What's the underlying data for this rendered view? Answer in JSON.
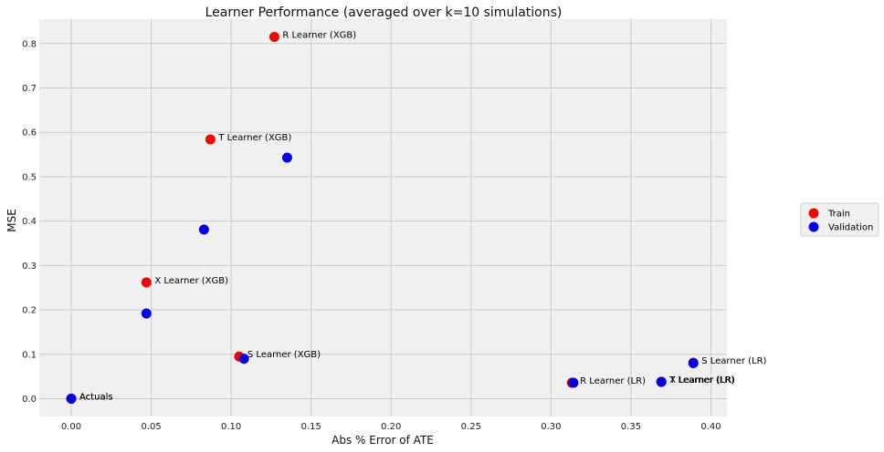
{
  "chart_data": {
    "type": "scatter",
    "title": "Learner Performance (averaged over k=10 simulations)",
    "xlabel": "Abs % Error of ATE",
    "ylabel": "MSE",
    "xlim": [
      -0.02,
      0.41
    ],
    "ylim": [
      -0.04,
      0.855
    ],
    "xticks": [
      0.0,
      0.05,
      0.1,
      0.15,
      0.2,
      0.25,
      0.3,
      0.35,
      0.4
    ],
    "xtick_labels": [
      "0.00",
      "0.05",
      "0.10",
      "0.15",
      "0.20",
      "0.25",
      "0.30",
      "0.35",
      "0.40"
    ],
    "yticks": [
      0.0,
      0.1,
      0.2,
      0.3,
      0.4,
      0.5,
      0.6,
      0.7,
      0.8
    ],
    "ytick_labels": [
      "0.0",
      "0.1",
      "0.2",
      "0.3",
      "0.4",
      "0.5",
      "0.6",
      "0.7",
      "0.8"
    ],
    "grid": true,
    "legend_position": "right",
    "series": [
      {
        "name": "Train",
        "color": "#ff0000",
        "points": [
          {
            "label": "R Learner (XGB)",
            "x": 0.127,
            "y": 0.815
          },
          {
            "label": "T Learner (XGB)",
            "x": 0.087,
            "y": 0.584
          },
          {
            "label": "X Learner (XGB)",
            "x": 0.047,
            "y": 0.262
          },
          {
            "label": "S Learner (XGB)",
            "x": 0.105,
            "y": 0.095
          },
          {
            "label": "Actuals",
            "x": 0.0,
            "y": 0.0
          },
          {
            "label": "R Learner (LR)",
            "x": 0.313,
            "y": 0.036
          },
          {
            "label": "X Learner (LR)",
            "x": 0.369,
            "y": 0.038
          },
          {
            "label": "T Learner (LR)",
            "x": 0.369,
            "y": 0.038
          },
          {
            "label": "S Learner (LR)",
            "x": 0.389,
            "y": 0.081
          }
        ]
      },
      {
        "name": "Validation",
        "color": "#0000ee",
        "points": [
          {
            "label": "",
            "x": 0.135,
            "y": 0.543
          },
          {
            "label": "",
            "x": 0.083,
            "y": 0.381
          },
          {
            "label": "",
            "x": 0.047,
            "y": 0.192
          },
          {
            "label": "",
            "x": 0.108,
            "y": 0.09
          },
          {
            "label": "Actuals",
            "x": 0.0,
            "y": 0.0
          },
          {
            "label": "",
            "x": 0.314,
            "y": 0.036
          },
          {
            "label": "",
            "x": 0.369,
            "y": 0.038
          },
          {
            "label": "",
            "x": 0.389,
            "y": 0.08
          }
        ]
      }
    ]
  }
}
